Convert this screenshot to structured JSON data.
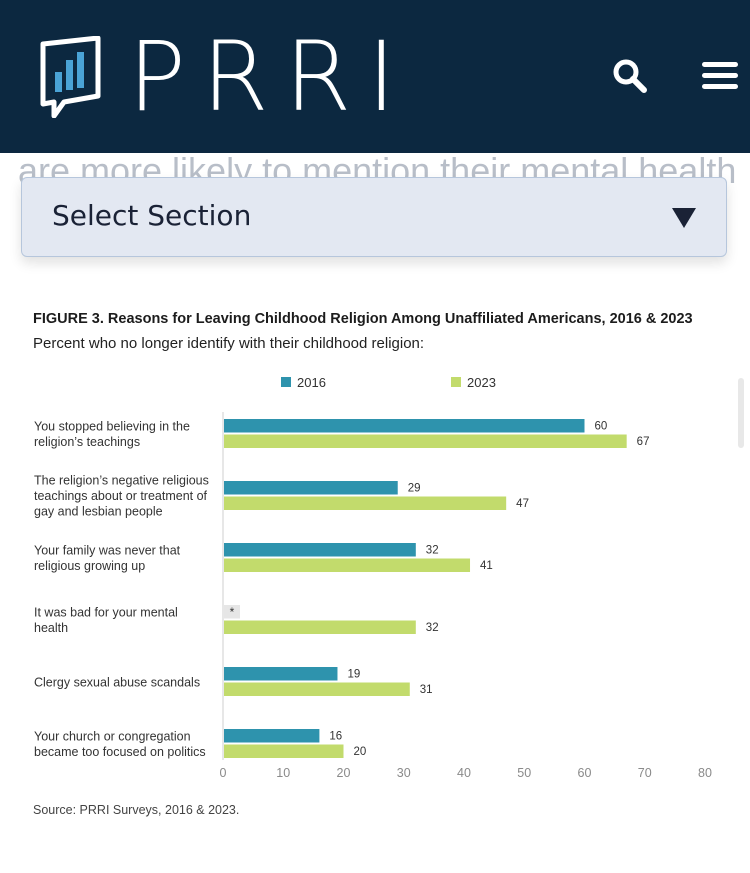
{
  "header": {
    "logo_text": "PRRI",
    "search_icon": "search-icon",
    "menu_icon": "hamburger-menu-icon",
    "background_color": "#0c2840"
  },
  "ghost_text": "are more likely to mention their mental health",
  "select_section": {
    "label": "Select Section",
    "caret_icon": "caret-down-icon"
  },
  "figure": {
    "title": "FIGURE 3. Reasons for Leaving Childhood Religion Among Unaffiliated Americans, 2016 & 2023",
    "subtitle": "Percent who no longer identify with their childhood religion:",
    "source": "Source: PRRI Surveys, 2016 & 2023."
  },
  "chart_data": {
    "type": "bar",
    "orientation": "horizontal",
    "categories": [
      [
        "You stopped believing in the",
        "religion’s teachings"
      ],
      [
        "The religion’s negative religious",
        "teachings about or treatment of",
        "gay and lesbian people"
      ],
      [
        "Your family was never that",
        "religious growing up"
      ],
      [
        "It was bad for your mental",
        "health"
      ],
      [
        "Clergy sexual abuse scandals"
      ],
      [
        "Your church or congregation",
        "became too focused on politics"
      ]
    ],
    "series": [
      {
        "name": "2016",
        "color": "#2e93ad",
        "values": [
          60,
          29,
          32,
          null,
          19,
          16
        ],
        "labels": [
          "60",
          "29",
          "32",
          "*",
          "19",
          "16"
        ]
      },
      {
        "name": "2023",
        "color": "#c2db6c",
        "values": [
          67,
          47,
          41,
          32,
          31,
          20
        ],
        "labels": [
          "67",
          "47",
          "41",
          "32",
          "31",
          "20"
        ]
      }
    ],
    "xlim": [
      0,
      80
    ],
    "xticks": [
      0,
      10,
      20,
      30,
      40,
      50,
      60,
      70,
      80
    ],
    "legend_position": "top-center",
    "xlabel": "",
    "ylabel": ""
  }
}
